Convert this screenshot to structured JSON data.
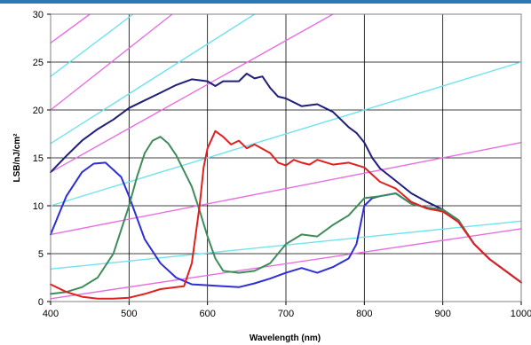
{
  "chart_data": {
    "type": "line",
    "title": "",
    "xlabel": "Wavelength (nm)",
    "ylabel": "LSB/nJ/cm²",
    "xlim": [
      400,
      1000
    ],
    "ylim": [
      0,
      30
    ],
    "grid": true,
    "legend": "none",
    "x_ticks": [
      "400",
      "500",
      "600",
      "700",
      "800",
      "900",
      "1000"
    ],
    "y_ticks": [
      "0",
      "5",
      "10",
      "15",
      "20",
      "25",
      "30"
    ],
    "series": [
      {
        "color": "#1f1f7a",
        "points": [
          [
            400,
            13.5
          ],
          [
            420,
            15.2
          ],
          [
            440,
            16.8
          ],
          [
            460,
            18.0
          ],
          [
            480,
            19.0
          ],
          [
            500,
            20.2
          ],
          [
            520,
            21.0
          ],
          [
            540,
            21.8
          ],
          [
            560,
            22.6
          ],
          [
            580,
            23.2
          ],
          [
            600,
            23.0
          ],
          [
            610,
            22.5
          ],
          [
            620,
            23.0
          ],
          [
            640,
            23.0
          ],
          [
            650,
            23.8
          ],
          [
            660,
            23.3
          ],
          [
            670,
            23.5
          ],
          [
            680,
            22.3
          ],
          [
            690,
            21.4
          ],
          [
            700,
            21.2
          ],
          [
            720,
            20.4
          ],
          [
            740,
            20.6
          ],
          [
            760,
            19.8
          ],
          [
            780,
            18.2
          ],
          [
            790,
            17.6
          ],
          [
            800,
            16.6
          ],
          [
            810,
            15.0
          ],
          [
            820,
            13.9
          ],
          [
            840,
            12.6
          ],
          [
            860,
            11.3
          ],
          [
            880,
            10.4
          ],
          [
            900,
            9.6
          ],
          [
            920,
            8.4
          ],
          [
            940,
            6.0
          ],
          [
            960,
            4.4
          ],
          [
            980,
            3.2
          ],
          [
            1000,
            2.0
          ]
        ]
      },
      {
        "color": "#2e2ed6",
        "points": [
          [
            400,
            7.0
          ],
          [
            410,
            9.0
          ],
          [
            420,
            11.0
          ],
          [
            440,
            13.5
          ],
          [
            455,
            14.4
          ],
          [
            470,
            14.5
          ],
          [
            490,
            13.0
          ],
          [
            500,
            11.0
          ],
          [
            520,
            6.5
          ],
          [
            540,
            4.0
          ],
          [
            560,
            2.5
          ],
          [
            580,
            1.8
          ],
          [
            600,
            1.7
          ],
          [
            620,
            1.6
          ],
          [
            640,
            1.5
          ],
          [
            660,
            1.9
          ],
          [
            680,
            2.4
          ],
          [
            700,
            3.0
          ],
          [
            720,
            3.5
          ],
          [
            740,
            3.0
          ],
          [
            760,
            3.6
          ],
          [
            780,
            4.5
          ],
          [
            790,
            6.0
          ],
          [
            800,
            10.0
          ],
          [
            810,
            10.8
          ],
          [
            820,
            11.0
          ],
          [
            840,
            11.3
          ],
          [
            860,
            10.2
          ],
          [
            880,
            9.8
          ],
          [
            900,
            9.6
          ],
          [
            920,
            8.5
          ],
          [
            940,
            6.0
          ],
          [
            960,
            4.4
          ],
          [
            980,
            3.2
          ],
          [
            1000,
            2.0
          ]
        ]
      },
      {
        "color": "#3e8c5a",
        "points": [
          [
            400,
            0.8
          ],
          [
            420,
            1.0
          ],
          [
            440,
            1.5
          ],
          [
            460,
            2.5
          ],
          [
            480,
            5.0
          ],
          [
            500,
            10.0
          ],
          [
            510,
            13.0
          ],
          [
            520,
            15.5
          ],
          [
            530,
            16.8
          ],
          [
            540,
            17.2
          ],
          [
            550,
            16.5
          ],
          [
            560,
            15.3
          ],
          [
            580,
            12.0
          ],
          [
            590,
            9.5
          ],
          [
            600,
            6.8
          ],
          [
            610,
            4.5
          ],
          [
            620,
            3.2
          ],
          [
            640,
            3.0
          ],
          [
            660,
            3.2
          ],
          [
            680,
            4.0
          ],
          [
            700,
            6.0
          ],
          [
            720,
            7.0
          ],
          [
            740,
            6.8
          ],
          [
            760,
            8.0
          ],
          [
            780,
            9.0
          ],
          [
            800,
            10.8
          ],
          [
            820,
            11.0
          ],
          [
            840,
            11.3
          ],
          [
            860,
            10.2
          ],
          [
            880,
            9.8
          ],
          [
            900,
            9.6
          ],
          [
            920,
            8.5
          ],
          [
            940,
            6.0
          ],
          [
            960,
            4.4
          ],
          [
            980,
            3.2
          ],
          [
            1000,
            2.0
          ]
        ]
      },
      {
        "color": "#e02020",
        "points": [
          [
            400,
            1.8
          ],
          [
            420,
            1.0
          ],
          [
            440,
            0.5
          ],
          [
            460,
            0.3
          ],
          [
            480,
            0.3
          ],
          [
            500,
            0.4
          ],
          [
            520,
            0.8
          ],
          [
            540,
            1.3
          ],
          [
            560,
            1.5
          ],
          [
            570,
            1.6
          ],
          [
            580,
            4.0
          ],
          [
            590,
            10.0
          ],
          [
            595,
            14.0
          ],
          [
            600,
            16.0
          ],
          [
            610,
            17.8
          ],
          [
            620,
            17.2
          ],
          [
            630,
            16.4
          ],
          [
            640,
            16.8
          ],
          [
            650,
            16.0
          ],
          [
            660,
            16.4
          ],
          [
            680,
            15.5
          ],
          [
            690,
            14.5
          ],
          [
            700,
            14.2
          ],
          [
            710,
            14.8
          ],
          [
            720,
            14.5
          ],
          [
            730,
            14.3
          ],
          [
            740,
            14.8
          ],
          [
            760,
            14.3
          ],
          [
            780,
            14.5
          ],
          [
            800,
            14.0
          ],
          [
            820,
            12.5
          ],
          [
            840,
            11.8
          ],
          [
            860,
            10.4
          ],
          [
            880,
            9.7
          ],
          [
            900,
            9.4
          ],
          [
            920,
            8.3
          ],
          [
            940,
            6.0
          ],
          [
            960,
            4.4
          ],
          [
            980,
            3.2
          ],
          [
            1000,
            2.0
          ]
        ]
      },
      {
        "color": "#e86ee0",
        "points": [
          [
            400,
            27.0
          ],
          [
            450,
            30.0
          ]
        ]
      },
      {
        "color": "#e86ee0",
        "points": [
          [
            400,
            20.0
          ],
          [
            555,
            30.0
          ]
        ]
      },
      {
        "color": "#e86ee0",
        "points": [
          [
            400,
            13.5
          ],
          [
            760,
            30.0
          ]
        ]
      },
      {
        "color": "#e86ee0",
        "points": [
          [
            400,
            7.0
          ],
          [
            1000,
            16.6
          ]
        ]
      },
      {
        "color": "#e86ee0",
        "points": [
          [
            400,
            0.3
          ],
          [
            1000,
            7.6
          ]
        ]
      },
      {
        "color": "#6fe3ee",
        "points": [
          [
            400,
            23.5
          ],
          [
            505,
            30.0
          ]
        ]
      },
      {
        "color": "#6fe3ee",
        "points": [
          [
            400,
            16.5
          ],
          [
            660,
            30.0
          ]
        ]
      },
      {
        "color": "#6fe3ee",
        "points": [
          [
            400,
            10.0
          ],
          [
            1000,
            25.0
          ]
        ]
      },
      {
        "color": "#6fe3ee",
        "points": [
          [
            400,
            3.4
          ],
          [
            1000,
            8.4
          ]
        ]
      }
    ]
  }
}
